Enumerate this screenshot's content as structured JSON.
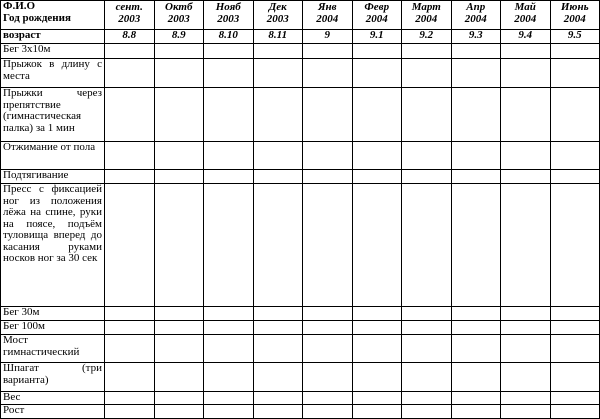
{
  "table": {
    "header": {
      "name": "Ф.И.О",
      "birth_year": "Год рождения",
      "columns": [
        {
          "month": "сент.",
          "year": "2003"
        },
        {
          "month": "Октб",
          "year": "2003"
        },
        {
          "month": "Нояб",
          "year": "2003"
        },
        {
          "month": "Дек",
          "year": "2003"
        },
        {
          "month": "Янв",
          "year": "2004"
        },
        {
          "month": "Февр",
          "year": "2004"
        },
        {
          "month": "Март",
          "year": "2004"
        },
        {
          "month": "Апр",
          "year": "2004"
        },
        {
          "month": "Май",
          "year": "2004"
        },
        {
          "month": "Июнь",
          "year": "2004"
        }
      ]
    },
    "age_row": {
      "label": "возраст",
      "values": [
        "8.8",
        "8.9",
        "8.10",
        "8.11",
        "9",
        "9.1",
        "9.2",
        "9.3",
        "9.4",
        "9.5"
      ]
    },
    "rows": [
      "Бег 3x10м",
      "Прыжок в длину с места",
      "Прыжки через препятствие (гимнастическая палка) за 1 мин",
      "Отжимание от пола",
      "Подтягивание",
      "Пресс с фиксацией ног из положения лёжа на спине, руки на поясе, подъём туловища вперед до касания руками носков ног за 30 сек",
      "Бег 30м",
      "Бег 100м",
      "Мост гимнастический",
      "Шпагат (три варианта)",
      "Вес",
      "Рост"
    ]
  }
}
